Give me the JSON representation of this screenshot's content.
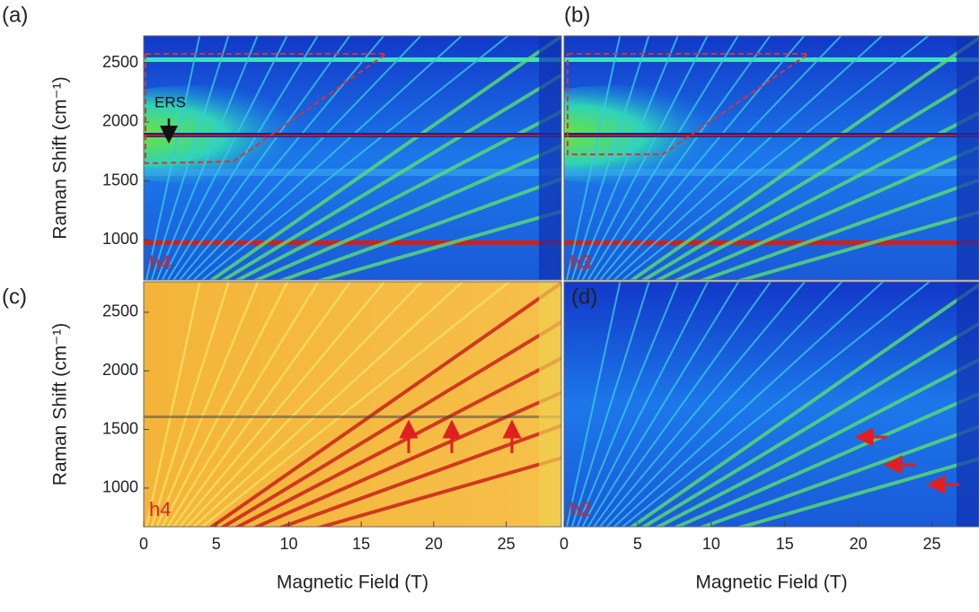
{
  "chart_data": [
    {
      "type": "heatmap",
      "panel_label": "(a)",
      "sample_label": "h4",
      "annotation": "ERS",
      "colormap": "jet",
      "y_label": "Raman Shift (cm⁻¹)",
      "xlim": [
        0,
        28.8
      ],
      "ylim": [
        660,
        2730
      ],
      "yticks": [
        1000,
        1500,
        2000,
        2500
      ]
    },
    {
      "type": "heatmap",
      "panel_label": "(b)",
      "sample_label": "h3",
      "colormap": "jet",
      "xlim": [
        0,
        28.2
      ],
      "ylim": [
        660,
        2730
      ]
    },
    {
      "type": "heatmap",
      "panel_label": "(c)",
      "sample_label": "h4",
      "colormap": "difference",
      "x_label": "Magnetic Field (T)",
      "y_label": "Raman Shift (cm⁻¹)",
      "xlim": [
        0,
        28.8
      ],
      "ylim": [
        670,
        2760
      ],
      "xticks": [
        0,
        5,
        10,
        15,
        20,
        25
      ],
      "yticks": [
        1000,
        1500,
        2000,
        2500
      ]
    },
    {
      "type": "heatmap",
      "panel_label": "(d)",
      "sample_label": "h2",
      "colormap": "jet",
      "x_label": "Magnetic Field (T)",
      "xlim": [
        0,
        28.2
      ],
      "ylim": [
        670,
        2760
      ],
      "xticks": [
        0,
        5,
        10,
        15,
        20,
        25
      ]
    }
  ]
}
